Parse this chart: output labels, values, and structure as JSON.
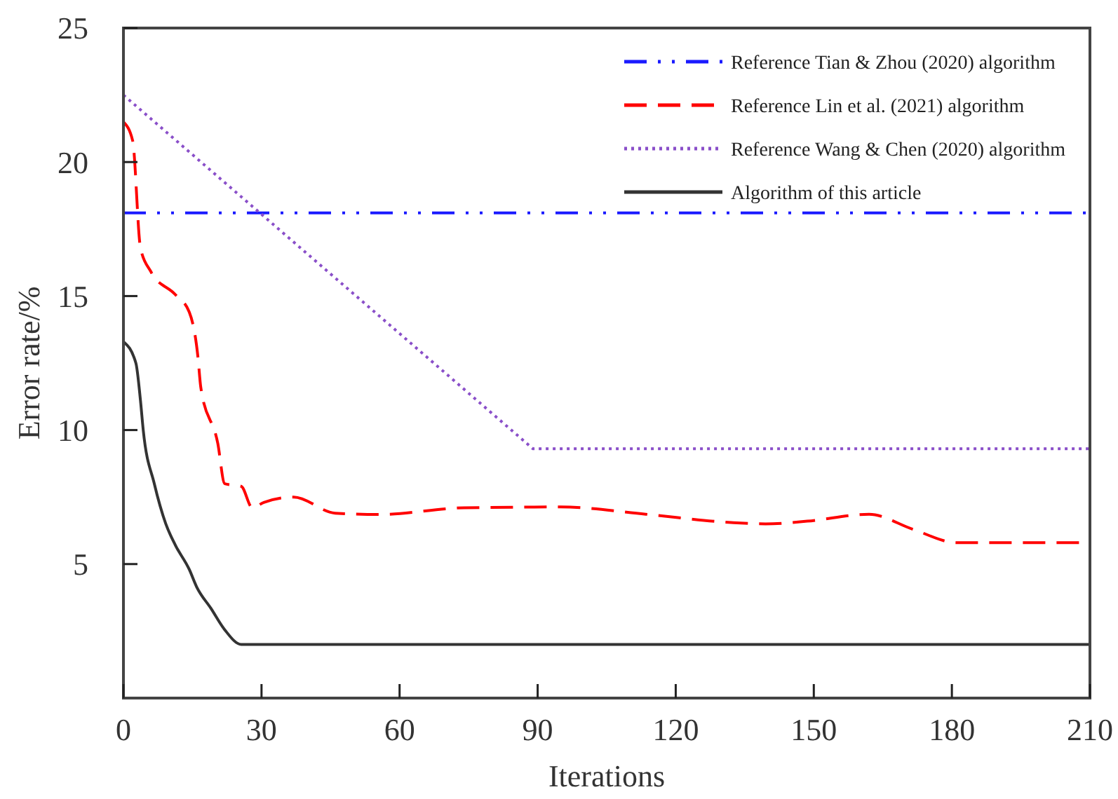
{
  "chart_data": {
    "type": "line",
    "xlabel": "Iterations",
    "ylabel": "Error rate/%",
    "xlim": [
      0,
      210
    ],
    "xticks": [
      0,
      30,
      60,
      90,
      120,
      150,
      180,
      210
    ],
    "ylim": [
      0,
      25
    ],
    "yticks": [
      5,
      10,
      15,
      20,
      25
    ],
    "grid": false,
    "legend": "top right",
    "marker": "none",
    "series": [
      {
        "name": "Reference Tian & Zhou (2020) algorithm",
        "color": "#1a1aff",
        "line_style": "dashdot",
        "x": [
          0,
          210
        ],
        "values": [
          18.1,
          18.1
        ]
      },
      {
        "name": "Reference Lin et al. (2021) algorithm",
        "color": "#ff0000",
        "line_style": "dashed",
        "x": [
          0,
          2,
          3.7,
          6,
          11.3,
          14.3,
          16.2,
          16.8,
          20.5,
          22,
          25.6,
          28,
          30.5,
          37,
          46,
          55.6,
          74,
          95,
          113.5,
          132,
          139.5,
          148.6,
          162,
          171.5,
          181,
          210
        ],
        "values": [
          21.5,
          20.8,
          16.8,
          15.9,
          15.05,
          14.4,
          12.7,
          11.6,
          9.5,
          8.0,
          7.9,
          7.1,
          7.3,
          7.5,
          6.9,
          6.85,
          7.1,
          7.13,
          6.86,
          6.55,
          6.5,
          6.6,
          6.86,
          6.3,
          5.8,
          5.8
        ]
      },
      {
        "name": "Reference Wang & Chen (2020) algorithm",
        "color": "#8a4fc9",
        "line_style": "dotted",
        "x": [
          0,
          89,
          210
        ],
        "values": [
          22.5,
          9.3,
          9.3
        ]
      },
      {
        "name": "Algorithm of this article",
        "color": "#333333",
        "line_style": "solid",
        "x": [
          0,
          2.7,
          3.7,
          4.3,
          6.7,
          9.2,
          11.3,
          14.3,
          15.9,
          19,
          22,
          25.6,
          210
        ],
        "values": [
          13.3,
          12.5,
          11.1,
          10.0,
          8.0,
          6.5,
          5.7,
          4.8,
          4.15,
          3.35,
          2.55,
          2.0,
          2.0
        ]
      }
    ]
  }
}
